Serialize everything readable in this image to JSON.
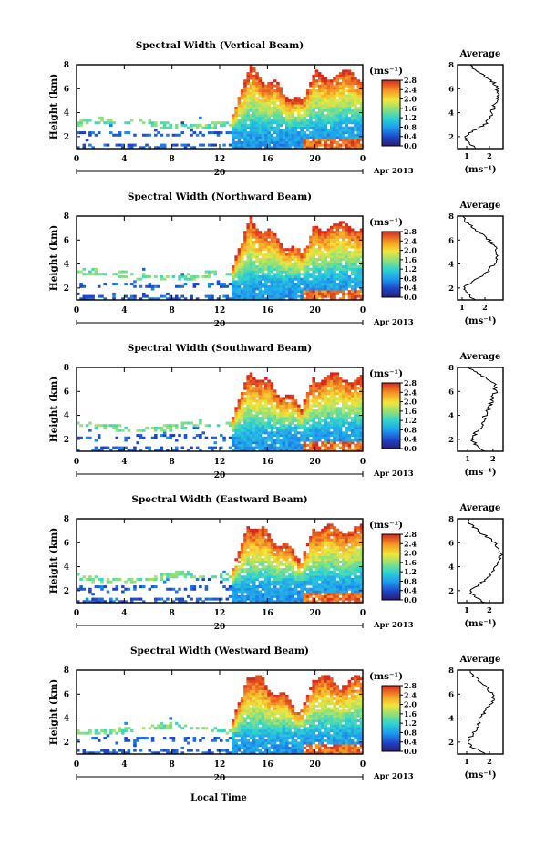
{
  "figure": {
    "x_axis_label": "Local Time",
    "units_label": "(ms⁻¹)",
    "average_title": "Average",
    "date_day": "20",
    "date_month_year": "Apr 2013",
    "y_axis_label": "Height (km)",
    "colorbar_ticks": [
      "0.0",
      "0.4",
      "0.8",
      "1.2",
      "1.6",
      "2.0",
      "2.4",
      "2.8"
    ],
    "x_ticks": [
      "0",
      "4",
      "8",
      "12",
      "16",
      "20",
      "0"
    ],
    "height_ticks": [
      "2",
      "4",
      "6",
      "8"
    ]
  },
  "chart_data": [
    {
      "type": "heatmap",
      "title": "Spectral Width (Vertical Beam)",
      "xlabel": "",
      "ylabel": "Height (km)",
      "xlim": [
        0,
        24
      ],
      "ylim": [
        1,
        8
      ],
      "colorbar": {
        "range": [
          0.0,
          2.8
        ],
        "unit": "ms⁻¹"
      },
      "profile": {
        "title": "Average",
        "xlabel": "(ms⁻¹)",
        "x_ticks": [
          "1",
          "2"
        ],
        "xlim": [
          0.6,
          2.6
        ],
        "heights": [
          1.0,
          1.5,
          2.0,
          2.5,
          3.0,
          3.5,
          4.0,
          4.5,
          5.0,
          5.5,
          6.0,
          6.5,
          7.0,
          7.5,
          8.0
        ],
        "values": [
          1.4,
          1.1,
          0.9,
          1.3,
          1.8,
          2.0,
          2.1,
          2.2,
          2.3,
          2.4,
          2.35,
          2.2,
          1.8,
          1.4,
          1.2
        ]
      }
    },
    {
      "type": "heatmap",
      "title": "Spectral Width (Northward Beam)",
      "xlabel": "",
      "ylabel": "Height (km)",
      "xlim": [
        0,
        24
      ],
      "ylim": [
        1,
        8
      ],
      "colorbar": {
        "range": [
          0.0,
          2.8
        ],
        "unit": "ms⁻¹"
      },
      "profile": {
        "title": "Average",
        "xlabel": "(ms⁻¹)",
        "x_ticks": [
          "1",
          "2"
        ],
        "xlim": [
          0.8,
          2.8
        ],
        "heights": [
          1.0,
          1.5,
          2.0,
          2.5,
          3.0,
          3.5,
          4.0,
          4.5,
          5.0,
          5.5,
          6.0,
          6.5,
          7.0,
          7.5,
          8.0
        ],
        "values": [
          1.6,
          1.2,
          1.1,
          1.4,
          1.9,
          2.2,
          2.4,
          2.5,
          2.5,
          2.4,
          2.2,
          1.9,
          1.5,
          1.2,
          1.1
        ]
      }
    },
    {
      "type": "heatmap",
      "title": "Spectral Width (Southward Beam)",
      "xlabel": "",
      "ylabel": "Height (km)",
      "xlim": [
        0,
        24
      ],
      "ylim": [
        1,
        8
      ],
      "colorbar": {
        "range": [
          0.0,
          2.8
        ],
        "unit": "ms⁻¹"
      },
      "profile": {
        "title": "Average",
        "xlabel": "(ms⁻¹)",
        "x_ticks": [
          "1",
          "2"
        ],
        "xlim": [
          0.6,
          2.4
        ],
        "heights": [
          1.0,
          1.5,
          2.0,
          2.5,
          3.0,
          3.5,
          4.0,
          4.5,
          5.0,
          5.5,
          6.0,
          6.5,
          7.0,
          7.5,
          8.0
        ],
        "values": [
          1.7,
          1.3,
          1.2,
          1.3,
          1.5,
          1.6,
          1.7,
          1.8,
          1.9,
          2.0,
          2.1,
          2.1,
          1.8,
          1.4,
          1.1
        ]
      }
    },
    {
      "type": "heatmap",
      "title": "Spectral Width (Eastward Beam)",
      "xlabel": "",
      "ylabel": "Height (km)",
      "xlim": [
        0,
        24
      ],
      "ylim": [
        1,
        8
      ],
      "colorbar": {
        "range": [
          0.0,
          2.8
        ],
        "unit": "ms⁻¹"
      },
      "profile": {
        "title": "Average",
        "xlabel": "(ms⁻¹)",
        "x_ticks": [
          "1",
          "2"
        ],
        "xlim": [
          0.6,
          2.6
        ],
        "heights": [
          1.0,
          1.5,
          2.0,
          2.5,
          3.0,
          3.5,
          4.0,
          4.5,
          5.0,
          5.5,
          6.0,
          6.5,
          7.0,
          7.5,
          8.0
        ],
        "values": [
          1.8,
          1.4,
          1.1,
          1.5,
          1.9,
          2.1,
          2.3,
          2.4,
          2.5,
          2.4,
          2.2,
          1.9,
          1.5,
          1.2,
          1.0
        ]
      }
    },
    {
      "type": "heatmap",
      "title": "Spectral Width (Westward Beam)",
      "xlabel": "Local Time",
      "ylabel": "Height (km)",
      "xlim": [
        0,
        24
      ],
      "ylim": [
        1,
        8
      ],
      "colorbar": {
        "range": [
          0.0,
          2.8
        ],
        "unit": "ms⁻¹"
      },
      "profile": {
        "title": "Average",
        "xlabel": "(ms⁻¹)",
        "x_ticks": [
          "1",
          "2"
        ],
        "xlim": [
          0.6,
          2.6
        ],
        "heights": [
          1.0,
          1.5,
          2.0,
          2.5,
          3.0,
          3.5,
          4.0,
          4.5,
          5.0,
          5.5,
          6.0,
          6.5,
          7.0,
          7.5,
          8.0
        ],
        "values": [
          1.8,
          1.3,
          1.0,
          1.2,
          1.4,
          1.5,
          1.6,
          1.8,
          2.0,
          2.2,
          2.1,
          1.9,
          1.6,
          1.3,
          1.1
        ]
      }
    }
  ]
}
